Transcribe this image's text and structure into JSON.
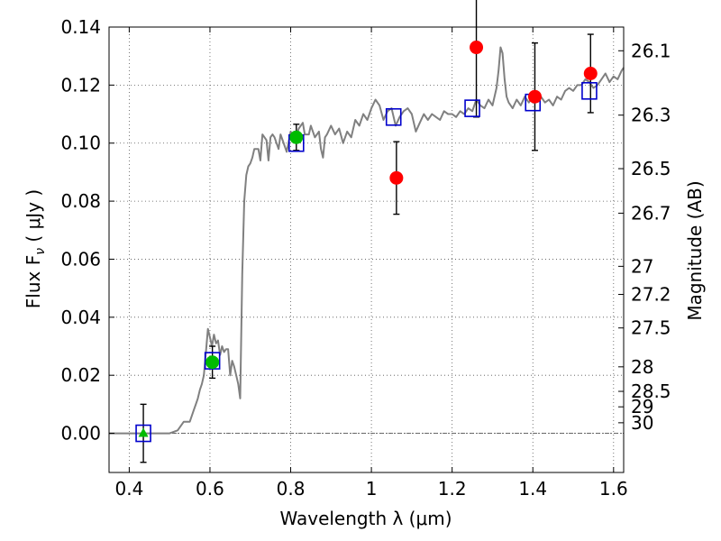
{
  "chart_data": {
    "type": "scatter",
    "xlabel": "Wavelength  λ (μm)",
    "ylabel": "Flux  F",
    "ylabel_sub": "ν",
    "ylabel_unit": " ( μJy )",
    "y2label": "Magnitude (AB)",
    "xlim": [
      0.35,
      1.625
    ],
    "ylim": [
      -0.0135,
      0.14
    ],
    "grid": true,
    "x_ticks": [
      0.4,
      0.6,
      0.8,
      1.0,
      1.2,
      1.4,
      1.6
    ],
    "x_tick_labels": [
      "0.4",
      "0.6",
      "0.8",
      "1",
      "1.2",
      "1.4",
      "1.6"
    ],
    "y_ticks": [
      0.0,
      0.02,
      0.04,
      0.06,
      0.08,
      0.1,
      0.12,
      0.14
    ],
    "y_tick_labels": [
      "0.00",
      "0.02",
      "0.04",
      "0.06",
      "0.08",
      "0.10",
      "0.12",
      "0.14"
    ],
    "mag_ticks": [
      "26.1",
      "26.3",
      "26.5",
      "26.7",
      "27",
      "27.2",
      "27.5",
      "28",
      "28.5",
      "29",
      "30"
    ],
    "mag_zero_point": 23.9,
    "colors": {
      "model": "#808080",
      "model_phot": "#0000cc",
      "red": "#ff0000",
      "green": "#00bb00",
      "errorbar": "#000000",
      "zero_line": "#555555",
      "grid": "#555555"
    },
    "model_sed": [
      [
        0.35,
        0.0
      ],
      [
        0.5,
        0.0
      ],
      [
        0.52,
        0.001
      ],
      [
        0.535,
        0.004
      ],
      [
        0.55,
        0.004
      ],
      [
        0.56,
        0.008
      ],
      [
        0.565,
        0.01
      ],
      [
        0.57,
        0.012
      ],
      [
        0.575,
        0.015
      ],
      [
        0.58,
        0.017
      ],
      [
        0.585,
        0.02
      ],
      [
        0.59,
        0.028
      ],
      [
        0.595,
        0.036
      ],
      [
        0.6,
        0.033
      ],
      [
        0.605,
        0.03
      ],
      [
        0.61,
        0.034
      ],
      [
        0.615,
        0.031
      ],
      [
        0.62,
        0.032
      ],
      [
        0.625,
        0.027
      ],
      [
        0.63,
        0.03
      ],
      [
        0.635,
        0.028
      ],
      [
        0.64,
        0.029
      ],
      [
        0.645,
        0.029
      ],
      [
        0.65,
        0.02
      ],
      [
        0.655,
        0.025
      ],
      [
        0.66,
        0.023
      ],
      [
        0.665,
        0.02
      ],
      [
        0.67,
        0.017
      ],
      [
        0.675,
        0.012
      ],
      [
        0.68,
        0.055
      ],
      [
        0.685,
        0.08
      ],
      [
        0.69,
        0.089
      ],
      [
        0.695,
        0.092
      ],
      [
        0.7,
        0.093
      ],
      [
        0.705,
        0.095
      ],
      [
        0.71,
        0.098
      ],
      [
        0.72,
        0.098
      ],
      [
        0.725,
        0.094
      ],
      [
        0.73,
        0.103
      ],
      [
        0.74,
        0.101
      ],
      [
        0.745,
        0.094
      ],
      [
        0.75,
        0.102
      ],
      [
        0.755,
        0.103
      ],
      [
        0.76,
        0.102
      ],
      [
        0.77,
        0.098
      ],
      [
        0.775,
        0.103
      ],
      [
        0.78,
        0.101
      ],
      [
        0.79,
        0.097
      ],
      [
        0.8,
        0.104
      ],
      [
        0.81,
        0.101
      ],
      [
        0.82,
        0.105
      ],
      [
        0.83,
        0.107
      ],
      [
        0.835,
        0.103
      ],
      [
        0.845,
        0.103
      ],
      [
        0.85,
        0.106
      ],
      [
        0.86,
        0.102
      ],
      [
        0.87,
        0.104
      ],
      [
        0.875,
        0.098
      ],
      [
        0.88,
        0.095
      ],
      [
        0.885,
        0.102
      ],
      [
        0.89,
        0.103
      ],
      [
        0.9,
        0.106
      ],
      [
        0.91,
        0.103
      ],
      [
        0.92,
        0.105
      ],
      [
        0.93,
        0.1
      ],
      [
        0.94,
        0.104
      ],
      [
        0.95,
        0.102
      ],
      [
        0.96,
        0.108
      ],
      [
        0.97,
        0.106
      ],
      [
        0.98,
        0.11
      ],
      [
        0.99,
        0.108
      ],
      [
        1.0,
        0.112
      ],
      [
        1.01,
        0.115
      ],
      [
        1.02,
        0.113
      ],
      [
        1.03,
        0.108
      ],
      [
        1.04,
        0.111
      ],
      [
        1.05,
        0.112
      ],
      [
        1.06,
        0.106
      ],
      [
        1.07,
        0.109
      ],
      [
        1.08,
        0.111
      ],
      [
        1.09,
        0.112
      ],
      [
        1.1,
        0.11
      ],
      [
        1.11,
        0.104
      ],
      [
        1.12,
        0.107
      ],
      [
        1.13,
        0.11
      ],
      [
        1.14,
        0.108
      ],
      [
        1.15,
        0.11
      ],
      [
        1.16,
        0.109
      ],
      [
        1.17,
        0.108
      ],
      [
        1.18,
        0.111
      ],
      [
        1.19,
        0.11
      ],
      [
        1.2,
        0.11
      ],
      [
        1.21,
        0.109
      ],
      [
        1.22,
        0.111
      ],
      [
        1.23,
        0.11
      ],
      [
        1.24,
        0.112
      ],
      [
        1.25,
        0.111
      ],
      [
        1.26,
        0.115
      ],
      [
        1.27,
        0.113
      ],
      [
        1.28,
        0.112
      ],
      [
        1.29,
        0.115
      ],
      [
        1.3,
        0.113
      ],
      [
        1.31,
        0.119
      ],
      [
        1.315,
        0.125
      ],
      [
        1.32,
        0.133
      ],
      [
        1.325,
        0.131
      ],
      [
        1.33,
        0.122
      ],
      [
        1.335,
        0.116
      ],
      [
        1.34,
        0.114
      ],
      [
        1.35,
        0.112
      ],
      [
        1.36,
        0.115
      ],
      [
        1.37,
        0.113
      ],
      [
        1.38,
        0.116
      ],
      [
        1.39,
        0.114
      ],
      [
        1.4,
        0.116
      ],
      [
        1.41,
        0.115
      ],
      [
        1.42,
        0.116
      ],
      [
        1.43,
        0.114
      ],
      [
        1.44,
        0.115
      ],
      [
        1.45,
        0.113
      ],
      [
        1.46,
        0.116
      ],
      [
        1.47,
        0.115
      ],
      [
        1.48,
        0.118
      ],
      [
        1.49,
        0.119
      ],
      [
        1.5,
        0.118
      ],
      [
        1.51,
        0.12
      ],
      [
        1.52,
        0.12
      ],
      [
        1.53,
        0.122
      ],
      [
        1.54,
        0.121
      ],
      [
        1.55,
        0.119
      ],
      [
        1.56,
        0.12
      ],
      [
        1.57,
        0.122
      ],
      [
        1.58,
        0.124
      ],
      [
        1.59,
        0.121
      ],
      [
        1.6,
        0.123
      ],
      [
        1.61,
        0.122
      ],
      [
        1.62,
        0.125
      ],
      [
        1.625,
        0.126
      ]
    ],
    "model_photometry": [
      {
        "x": 0.435,
        "y": 0.0
      },
      {
        "x": 0.606,
        "y": 0.025
      },
      {
        "x": 0.814,
        "y": 0.1
      },
      {
        "x": 1.055,
        "y": 0.109
      },
      {
        "x": 1.25,
        "y": 0.112
      },
      {
        "x": 1.4,
        "y": 0.114
      },
      {
        "x": 1.54,
        "y": 0.118
      }
    ],
    "observations_red": [
      {
        "x": 1.062,
        "y": 0.088,
        "err": 0.0125
      },
      {
        "x": 1.26,
        "y": 0.133,
        "err": 0.024
      },
      {
        "x": 1.405,
        "y": 0.116,
        "err": 0.0185
      },
      {
        "x": 1.543,
        "y": 0.124,
        "err": 0.0135
      }
    ],
    "observations_green_circles": [
      {
        "x": 0.606,
        "y": 0.0245,
        "err": 0.0055
      },
      {
        "x": 0.814,
        "y": 0.102,
        "err": 0.0045
      }
    ],
    "observations_green_triangles": [
      {
        "x": 0.435,
        "y": 0.0,
        "err": 0.01
      }
    ]
  }
}
